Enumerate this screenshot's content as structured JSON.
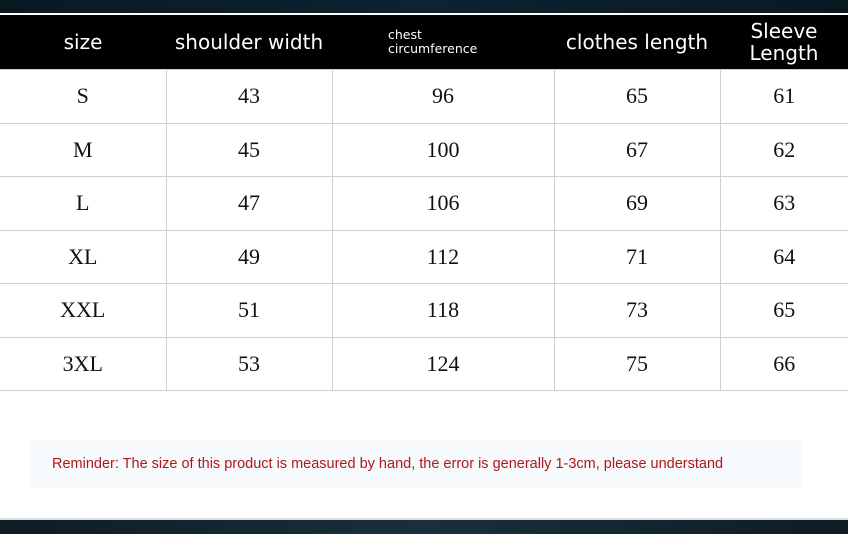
{
  "table": {
    "headers": [
      "size",
      "shoulder width",
      "chest circumference",
      "clothes length",
      "Sleeve Length"
    ],
    "header_lines": {
      "chest": [
        "chest",
        "circumference"
      ],
      "sleeve": [
        "Sleeve",
        "Length"
      ]
    },
    "rows": [
      [
        "S",
        "43",
        "96",
        "65",
        "61"
      ],
      [
        "M",
        "45",
        "100",
        "67",
        "62"
      ],
      [
        "L",
        "47",
        "106",
        "69",
        "63"
      ],
      [
        "XL",
        "49",
        "112",
        "71",
        "64"
      ],
      [
        "XXL",
        "51",
        "118",
        "73",
        "65"
      ],
      [
        "3XL",
        "53",
        "124",
        "75",
        "66"
      ]
    ]
  },
  "reminder": "Reminder: The size of this product is measured by hand, the error is generally 1-3cm, please understand",
  "colors": {
    "header_bg": "#000000",
    "reminder_text": "#b01818"
  }
}
